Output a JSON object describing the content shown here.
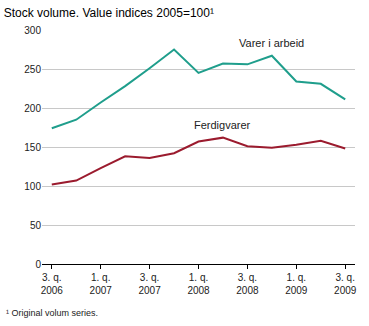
{
  "chart_data": {
    "type": "line",
    "title": "Stock volume. Value indices 2005=100¹",
    "footnote": "¹ Original volum series.",
    "categories": [
      "3. q.\n2006",
      null,
      "1. q.\n2007",
      null,
      "3. q.\n2007",
      null,
      "1. q.\n2008",
      null,
      "3. q.\n2008",
      null,
      "1. q.\n2009",
      null,
      "3. q.\n2009"
    ],
    "series": [
      {
        "name": "Varer i arbeid",
        "color": "#1f9e8c",
        "values": [
          174,
          185,
          207,
          228,
          251,
          275,
          245,
          257,
          256,
          267,
          234,
          231,
          211
        ]
      },
      {
        "name": "Ferdigvarer",
        "color": "#9b1b2e",
        "values": [
          102,
          107,
          123,
          138,
          136,
          142,
          157,
          162,
          151,
          149,
          153,
          158,
          148
        ]
      }
    ],
    "ylim": [
      0,
      300
    ],
    "yticks": [
      0,
      50,
      100,
      150,
      200,
      250,
      300
    ],
    "grid": true
  }
}
